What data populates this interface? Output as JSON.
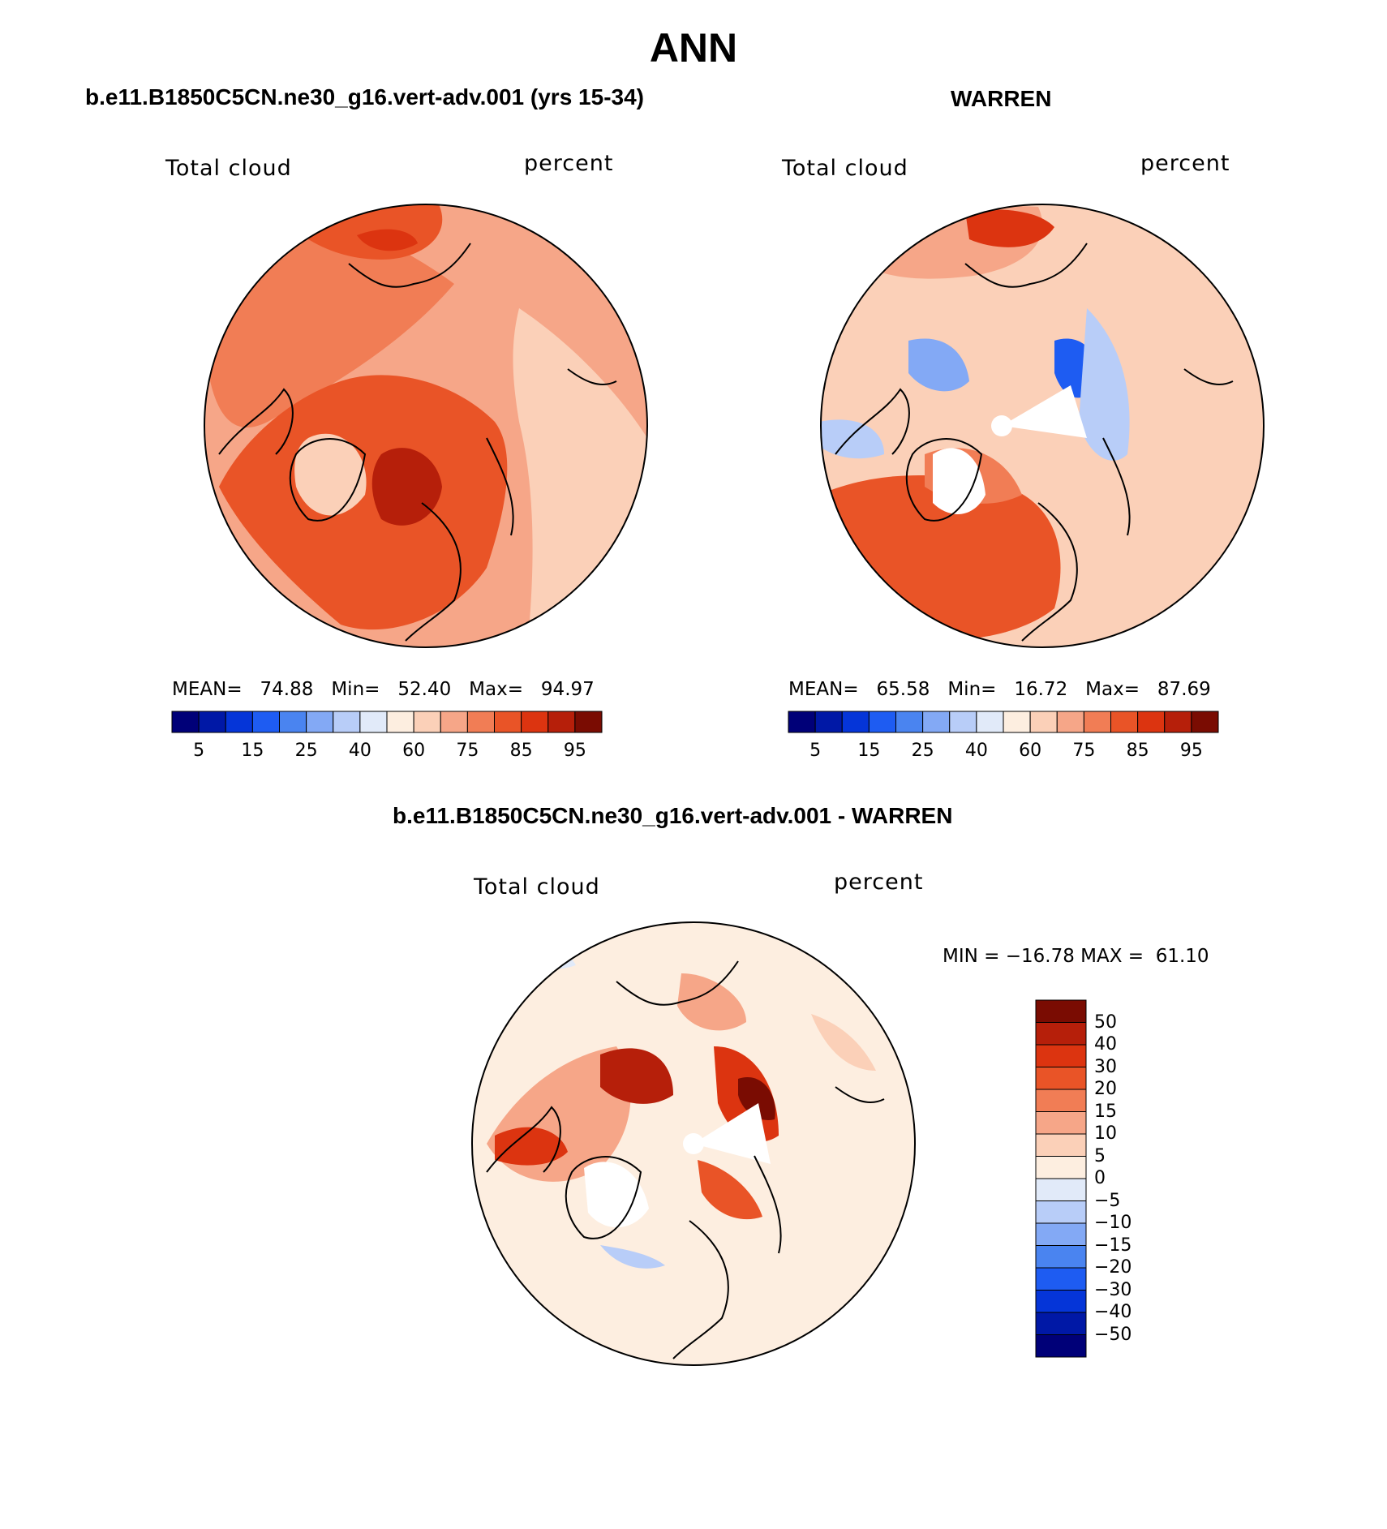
{
  "title": "ANN",
  "panels": [
    {
      "heading": "b.e11.B1850C5CN.ne30_g16.vert-adv.001 (yrs 15-34)",
      "variable_label": "Total cloud",
      "units_label": "percent",
      "stats": {
        "mean_label": "MEAN=",
        "mean": "74.88",
        "min_label": "Min=",
        "min": "52.40",
        "max_label": "Max=",
        "max": "94.97"
      }
    },
    {
      "heading": "WARREN",
      "variable_label": "Total cloud",
      "units_label": "percent",
      "stats": {
        "mean_label": "MEAN=",
        "mean": "65.58",
        "min_label": "Min=",
        "min": "16.72",
        "max_label": "Max=",
        "max": "87.69"
      }
    },
    {
      "heading": "b.e11.B1850C5CN.ne30_g16.vert-adv.001 - WARREN",
      "variable_label": "Total cloud",
      "units_label": "percent",
      "minmax": "MIN = −16.78 MAX =  61.10"
    }
  ],
  "abs_colorbar": {
    "colors": [
      "#000078",
      "#0018a6",
      "#0535d8",
      "#1e5cf2",
      "#4a84f0",
      "#83a9f5",
      "#b8cdf8",
      "#e1eaf9",
      "#fdeee0",
      "#fbd0b8",
      "#f6a688",
      "#f17d55",
      "#e95427",
      "#dc3410",
      "#b61f0a",
      "#7a0c02"
    ],
    "ticks": [
      "5",
      "15",
      "25",
      "40",
      "60",
      "75",
      "85",
      "95"
    ]
  },
  "diff_colorbar": {
    "colors": [
      "#7a0c02",
      "#b61f0a",
      "#dc3410",
      "#e95427",
      "#f17d55",
      "#f6a688",
      "#fbd0b8",
      "#fdeee0",
      "#e1eaf9",
      "#b8cdf8",
      "#83a9f5",
      "#4a84f0",
      "#1e5cf2",
      "#0535d8",
      "#0018a6",
      "#000078"
    ],
    "ticks": [
      "50",
      "40",
      "30",
      "20",
      "15",
      "10",
      "5",
      "0",
      "−5",
      "−10",
      "−15",
      "−20",
      "−30",
      "−40",
      "−50"
    ]
  }
}
